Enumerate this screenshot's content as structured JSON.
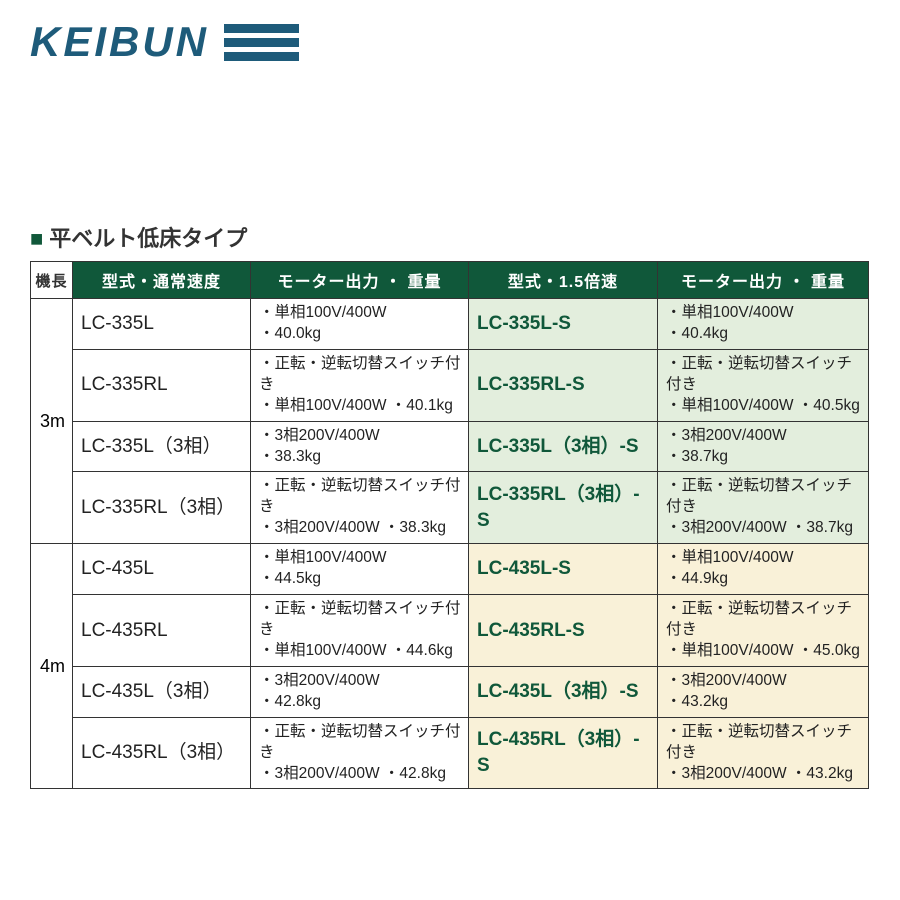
{
  "logo": {
    "text": "KEIBUN"
  },
  "section": {
    "marker": "■",
    "title": "平ベルト低床タイプ"
  },
  "colors": {
    "header_bg": "#10583a",
    "header_fg": "#ffffff",
    "accent_green": "#10583a",
    "row_green": "#e3eedd",
    "row_cream": "#f9f1d8",
    "logo": "#1e5b7a",
    "border": "#333333"
  },
  "headers": {
    "length": "機長",
    "model_normal": "型式・通常速度",
    "spec_normal": "モーター出力 ・ 重量",
    "model_hi": "型式・1.5倍速",
    "spec_hi": "モーター出力 ・ 重量"
  },
  "groups": [
    {
      "length": "3m",
      "tint": "bg-green",
      "rows": [
        {
          "model": "LC-335L",
          "spec": "・単相100V/400W\n・40.0kg",
          "model_s": "LC-335L-S",
          "spec_s": "・単相100V/400W\n・40.4kg"
        },
        {
          "model": "LC-335RL",
          "spec": "・正転・逆転切替スイッチ付き\n・単相100V/400W ・40.1kg",
          "model_s": "LC-335RL-S",
          "spec_s": "・正転・逆転切替スイッチ付き\n・単相100V/400W ・40.5kg"
        },
        {
          "model": "LC-335L（3相）",
          "spec": "・3相200V/400W\n・38.3kg",
          "model_s": "LC-335L（3相）-S",
          "spec_s": "・3相200V/400W\n・38.7kg"
        },
        {
          "model": "LC-335RL（3相）",
          "spec": "・正転・逆転切替スイッチ付き\n・3相200V/400W ・38.3kg",
          "model_s": "LC-335RL（3相）-S",
          "spec_s": "・正転・逆転切替スイッチ付き\n・3相200V/400W ・38.7kg"
        }
      ]
    },
    {
      "length": "4m",
      "tint": "bg-cream",
      "rows": [
        {
          "model": "LC-435L",
          "spec": "・単相100V/400W\n・44.5kg",
          "model_s": "LC-435L-S",
          "spec_s": "・単相100V/400W\n・44.9kg"
        },
        {
          "model": "LC-435RL",
          "spec": "・正転・逆転切替スイッチ付き\n・単相100V/400W ・44.6kg",
          "model_s": "LC-435RL-S",
          "spec_s": "・正転・逆転切替スイッチ付き\n・単相100V/400W ・45.0kg"
        },
        {
          "model": "LC-435L（3相）",
          "spec": "・3相200V/400W\n・42.8kg",
          "model_s": "LC-435L（3相）-S",
          "spec_s": "・3相200V/400W\n・43.2kg"
        },
        {
          "model": "LC-435RL（3相）",
          "spec": "・正転・逆転切替スイッチ付き\n・3相200V/400W ・42.8kg",
          "model_s": "LC-435RL（3相）-S",
          "spec_s": "・正転・逆転切替スイッチ付き\n・3相200V/400W ・43.2kg"
        }
      ]
    }
  ]
}
